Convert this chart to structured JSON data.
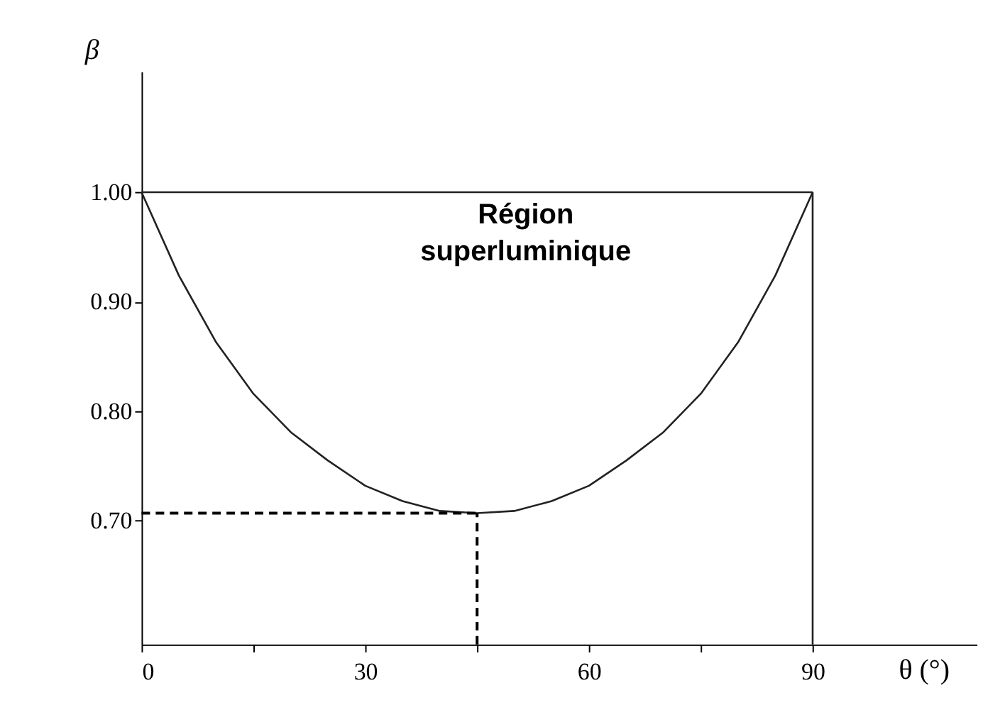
{
  "chart_data": {
    "type": "line",
    "xlabel": "θ (°)",
    "ylabel": "β",
    "annotations": [
      "Région superluminique"
    ],
    "xlim": [
      0,
      112
    ],
    "ylim": [
      0.587,
      1.11
    ],
    "xticks": [
      0,
      30,
      60,
      90,
      {
        "value": 15,
        "label": null
      },
      {
        "value": 45,
        "label": null
      },
      {
        "value": 75,
        "label": null
      }
    ],
    "yticks": [
      {
        "value": 0.7,
        "label": "0.70"
      },
      {
        "value": 0.8,
        "label": "0.80"
      },
      {
        "value": 0.9,
        "label": "0.90"
      },
      {
        "value": 1.0,
        "label": "1.00"
      }
    ],
    "grid": false,
    "series": [
      {
        "color": "#222222",
        "line_style": "solid",
        "x": [
          0,
          5,
          10,
          15,
          20,
          25,
          30,
          35,
          40,
          45,
          50,
          55,
          60,
          65,
          70,
          75,
          80,
          85,
          90
        ],
        "values": [
          1.0,
          0.924,
          0.863,
          0.816,
          0.781,
          0.755,
          0.732,
          0.718,
          0.709,
          0.707,
          0.709,
          0.718,
          0.732,
          0.755,
          0.781,
          0.816,
          0.863,
          0.924,
          1.0
        ]
      },
      {
        "color": "#222222",
        "line_style": "solid",
        "x": [
          0,
          90
        ],
        "values": [
          1.0,
          1.0
        ]
      },
      {
        "color": "#222222",
        "line_style": "solid",
        "x": [
          90,
          90
        ],
        "values": [
          0.587,
          1.0
        ]
      },
      {
        "color": "#000000",
        "line_style": "dashed",
        "x": [
          0,
          45
        ],
        "values": [
          0.707,
          0.707
        ]
      },
      {
        "color": "#000000",
        "line_style": "dashed",
        "x": [
          45,
          45
        ],
        "values": [
          0.587,
          0.707
        ]
      }
    ]
  }
}
